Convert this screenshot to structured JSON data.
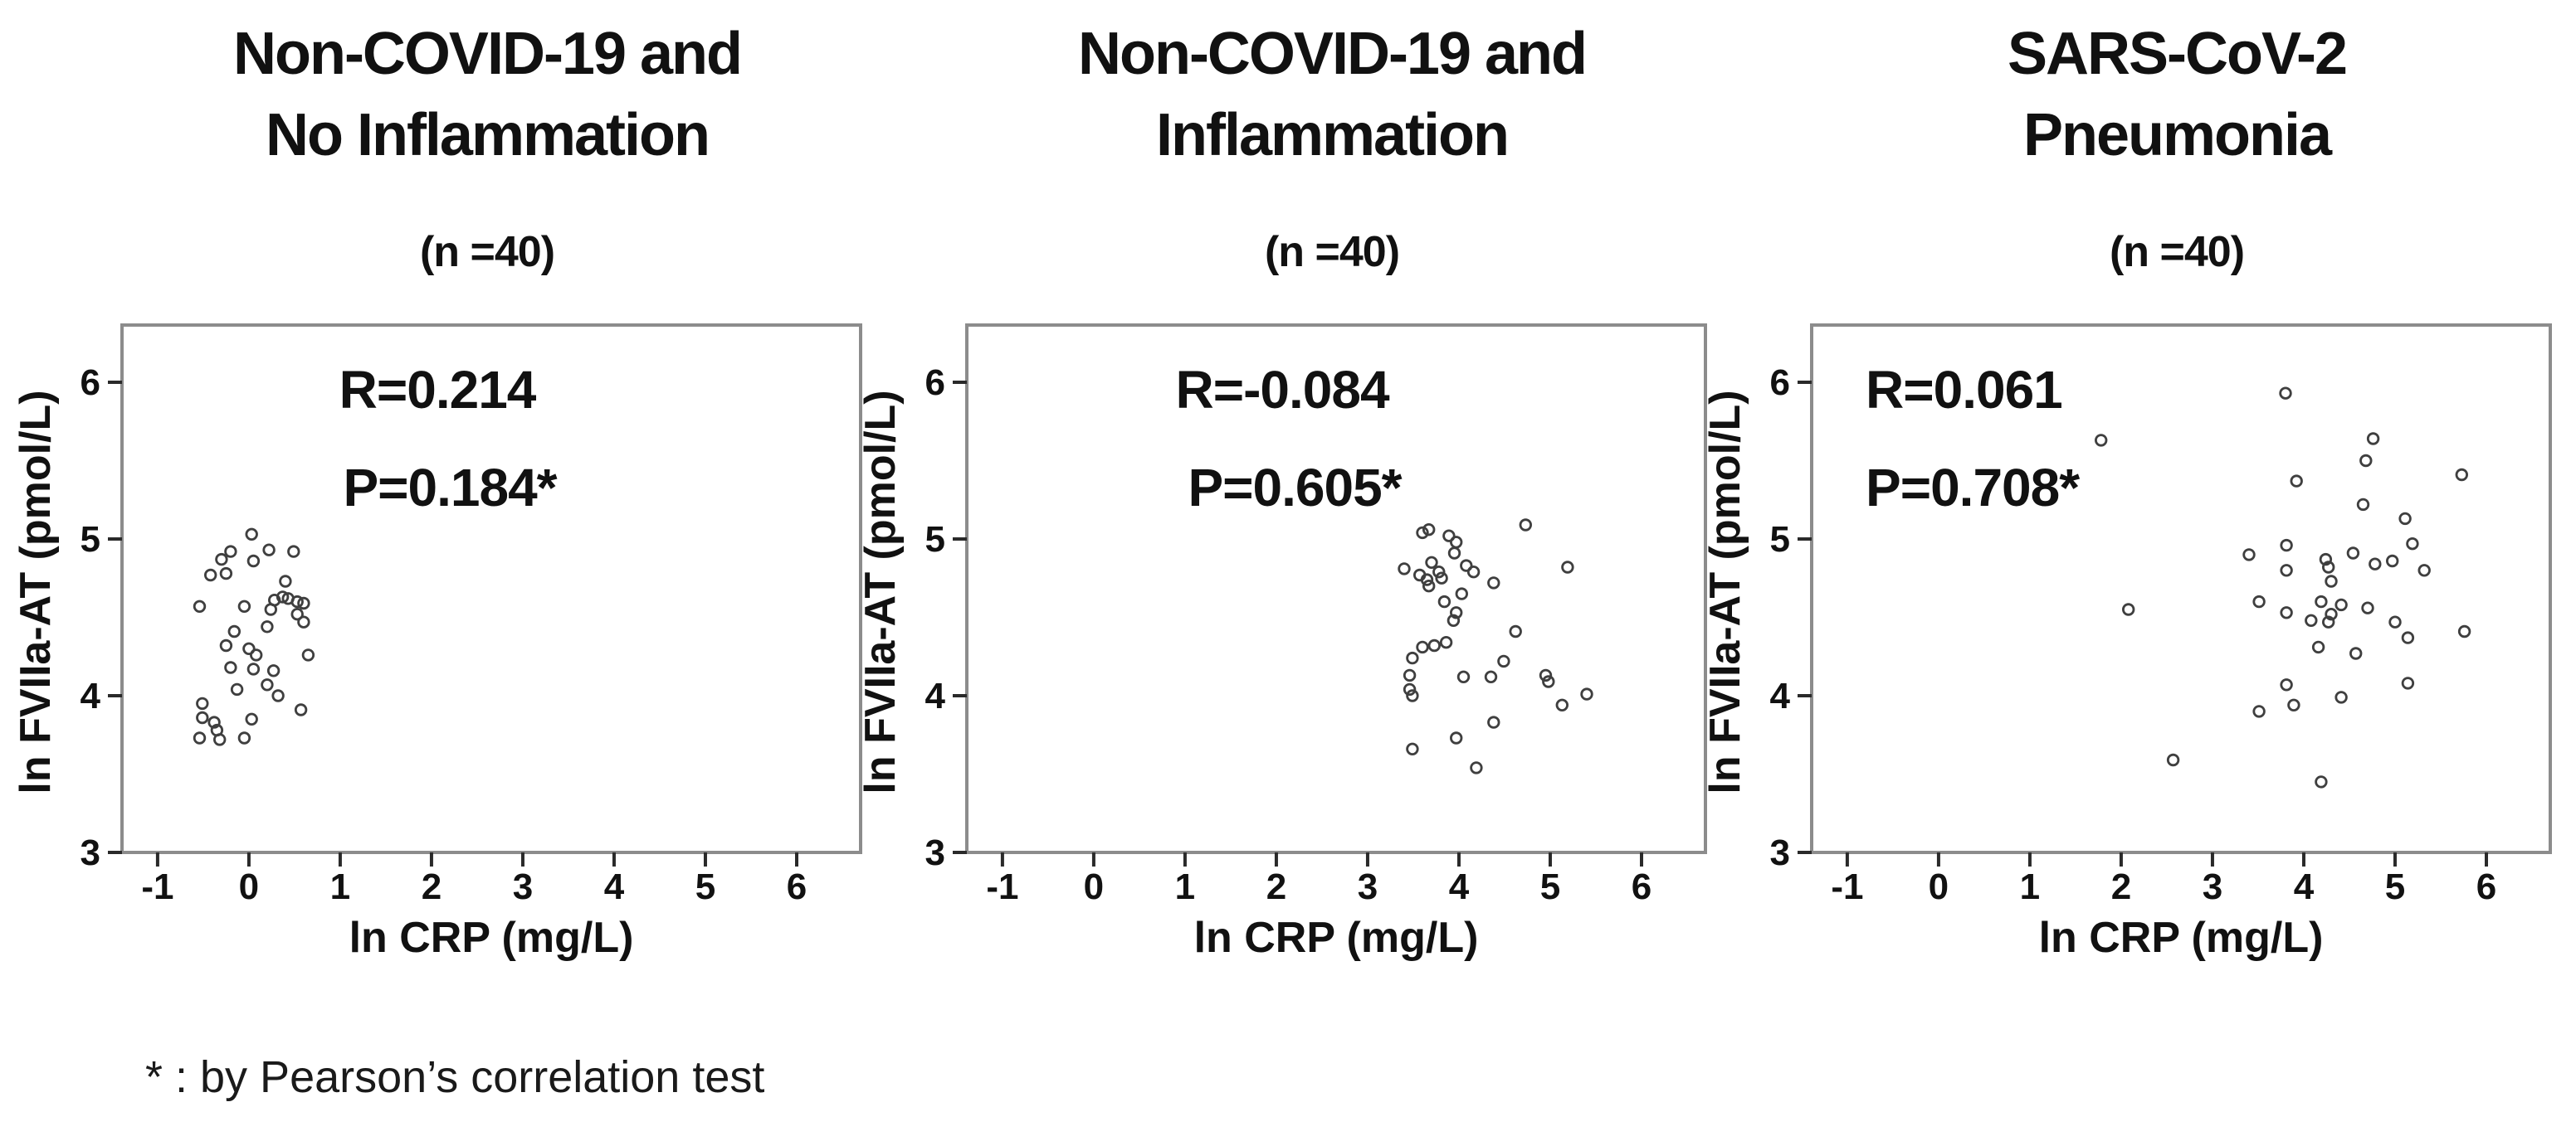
{
  "figure": {
    "footnote": "* : by Pearson’s correlation test",
    "colors": {
      "point_stroke": "#3f3f3f",
      "frame_stroke": "#8c8c8c",
      "tick": "#2a2a2a",
      "text": "#111111",
      "background": "#ffffff"
    }
  },
  "axes": {
    "xlabel": "ln CRP (mg/L)",
    "ylabel": "ln FVIIa-AT (pmol/L)",
    "x_ticks": [
      "-1",
      "0",
      "1",
      "2",
      "3",
      "4",
      "5",
      "6"
    ],
    "y_ticks": [
      "3",
      "4",
      "5",
      "6"
    ],
    "xlim": [
      -1.39,
      6.7
    ],
    "ylim": [
      3.0,
      6.365
    ],
    "grid": false,
    "marker": "open-circle"
  },
  "chart_data": [
    {
      "type": "scatter",
      "title_lines": [
        "Non-COVID-19 and",
        "No Inflammation"
      ],
      "n_label": "(n =40)",
      "xlabel": "ln CRP (mg/L)",
      "ylabel": "ln FVIIa-AT (pmol/L)",
      "stats": {
        "r": "R=0.214",
        "p": "P=0.184*",
        "align": "center"
      },
      "points": [
        [
          0.03,
          5.03
        ],
        [
          -0.2,
          4.92
        ],
        [
          0.22,
          4.93
        ],
        [
          0.49,
          4.92
        ],
        [
          -0.3,
          4.87
        ],
        [
          0.05,
          4.86
        ],
        [
          -0.42,
          4.77
        ],
        [
          -0.25,
          4.78
        ],
        [
          0.4,
          4.73
        ],
        [
          -0.54,
          4.57
        ],
        [
          -0.05,
          4.57
        ],
        [
          0.28,
          4.61
        ],
        [
          0.37,
          4.63
        ],
        [
          0.43,
          4.62
        ],
        [
          0.53,
          4.6
        ],
        [
          0.6,
          4.59
        ],
        [
          0.24,
          4.55
        ],
        [
          0.53,
          4.52
        ],
        [
          0.6,
          4.47
        ],
        [
          0.2,
          4.44
        ],
        [
          -0.16,
          4.41
        ],
        [
          -0.25,
          4.32
        ],
        [
          0.0,
          4.3
        ],
        [
          0.08,
          4.26
        ],
        [
          0.65,
          4.26
        ],
        [
          0.27,
          4.16
        ],
        [
          -0.2,
          4.18
        ],
        [
          0.05,
          4.17
        ],
        [
          0.2,
          4.07
        ],
        [
          -0.13,
          4.04
        ],
        [
          0.32,
          4.0
        ],
        [
          -0.51,
          3.95
        ],
        [
          0.57,
          3.91
        ],
        [
          -0.51,
          3.86
        ],
        [
          -0.38,
          3.83
        ],
        [
          0.03,
          3.85
        ],
        [
          -0.35,
          3.78
        ],
        [
          -0.54,
          3.73
        ],
        [
          -0.32,
          3.72
        ],
        [
          -0.05,
          3.73
        ]
      ]
    },
    {
      "type": "scatter",
      "title_lines": [
        "Non-COVID-19 and",
        "Inflammation"
      ],
      "n_label": "(n =40)",
      "xlabel": "ln CRP (mg/L)",
      "ylabel": "ln FVIIa-AT (pmol/L)",
      "stats": {
        "r": "R=-0.084",
        "p": "P=0.605*",
        "align": "center"
      },
      "points": [
        [
          3.6,
          5.04
        ],
        [
          3.67,
          5.06
        ],
        [
          3.89,
          5.02
        ],
        [
          3.97,
          4.98
        ],
        [
          4.73,
          5.09
        ],
        [
          3.95,
          4.91
        ],
        [
          3.7,
          4.85
        ],
        [
          3.4,
          4.81
        ],
        [
          4.08,
          4.83
        ],
        [
          4.16,
          4.79
        ],
        [
          5.19,
          4.82
        ],
        [
          3.57,
          4.77
        ],
        [
          3.65,
          4.74
        ],
        [
          3.78,
          4.79
        ],
        [
          3.81,
          4.75
        ],
        [
          3.67,
          4.7
        ],
        [
          4.38,
          4.72
        ],
        [
          4.03,
          4.65
        ],
        [
          3.84,
          4.6
        ],
        [
          3.97,
          4.53
        ],
        [
          3.94,
          4.48
        ],
        [
          4.62,
          4.41
        ],
        [
          3.86,
          4.34
        ],
        [
          3.73,
          4.32
        ],
        [
          3.6,
          4.31
        ],
        [
          3.49,
          4.24
        ],
        [
          4.49,
          4.22
        ],
        [
          3.46,
          4.13
        ],
        [
          4.05,
          4.12
        ],
        [
          4.35,
          4.12
        ],
        [
          4.95,
          4.13
        ],
        [
          4.98,
          4.09
        ],
        [
          3.46,
          4.04
        ],
        [
          3.49,
          4.0
        ],
        [
          5.4,
          4.01
        ],
        [
          5.13,
          3.94
        ],
        [
          4.38,
          3.83
        ],
        [
          3.97,
          3.73
        ],
        [
          3.49,
          3.66
        ],
        [
          4.19,
          3.54
        ]
      ]
    },
    {
      "type": "scatter",
      "title_lines": [
        "SARS-CoV-2",
        "Pneumonia"
      ],
      "n_label": "(n =40)",
      "xlabel": "ln CRP (mg/L)",
      "ylabel": "ln FVIIa-AT (pmol/L)",
      "stats": {
        "r": "R=0.061",
        "p": "P=0.708*",
        "align": "left"
      },
      "points": [
        [
          3.8,
          5.93
        ],
        [
          1.78,
          5.63
        ],
        [
          4.76,
          5.64
        ],
        [
          4.68,
          5.5
        ],
        [
          3.92,
          5.37
        ],
        [
          5.73,
          5.41
        ],
        [
          4.65,
          5.22
        ],
        [
          5.11,
          5.13
        ],
        [
          3.81,
          4.96
        ],
        [
          5.19,
          4.97
        ],
        [
          3.4,
          4.9
        ],
        [
          4.54,
          4.91
        ],
        [
          4.24,
          4.87
        ],
        [
          4.27,
          4.82
        ],
        [
          3.81,
          4.8
        ],
        [
          4.78,
          4.84
        ],
        [
          4.97,
          4.86
        ],
        [
          5.32,
          4.8
        ],
        [
          4.3,
          4.73
        ],
        [
          3.51,
          4.6
        ],
        [
          4.19,
          4.6
        ],
        [
          4.41,
          4.58
        ],
        [
          3.81,
          4.53
        ],
        [
          4.3,
          4.52
        ],
        [
          4.7,
          4.56
        ],
        [
          2.08,
          4.55
        ],
        [
          4.08,
          4.48
        ],
        [
          4.27,
          4.47
        ],
        [
          5.0,
          4.47
        ],
        [
          5.76,
          4.41
        ],
        [
          5.14,
          4.37
        ],
        [
          4.16,
          4.31
        ],
        [
          4.57,
          4.27
        ],
        [
          3.81,
          4.07
        ],
        [
          5.14,
          4.08
        ],
        [
          4.41,
          3.99
        ],
        [
          3.89,
          3.94
        ],
        [
          3.51,
          3.9
        ],
        [
          2.57,
          3.59
        ],
        [
          4.19,
          3.45
        ]
      ]
    }
  ]
}
